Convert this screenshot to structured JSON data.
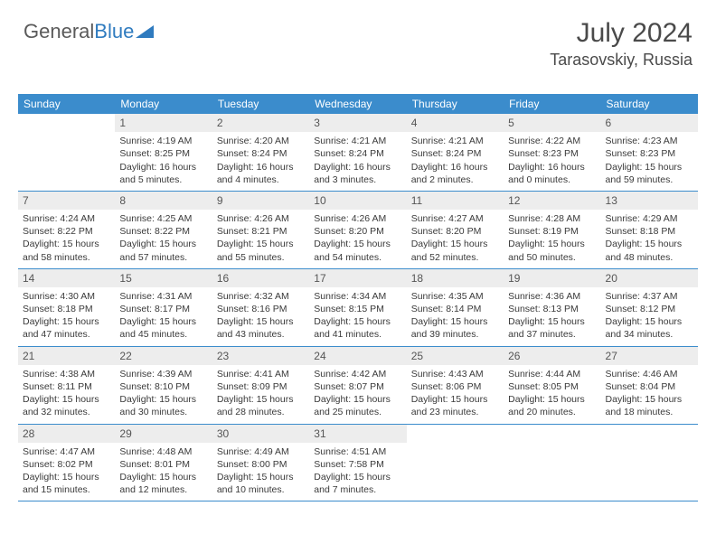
{
  "brand": {
    "part1": "General",
    "part2": "Blue"
  },
  "title": "July 2024",
  "location": "Tarasovskiy, Russia",
  "colors": {
    "header_bg": "#3b8ccc",
    "header_text": "#ffffff",
    "daynum_bg": "#ededed",
    "row_border": "#3b8ccc",
    "text": "#3a3a3a",
    "brand_gray": "#5a5a5a",
    "brand_blue": "#2f7bbf"
  },
  "dow": [
    "Sunday",
    "Monday",
    "Tuesday",
    "Wednesday",
    "Thursday",
    "Friday",
    "Saturday"
  ],
  "weeks": [
    [
      null,
      {
        "n": "1",
        "sr": "4:19 AM",
        "ss": "8:25 PM",
        "dl": "16 hours and 5 minutes."
      },
      {
        "n": "2",
        "sr": "4:20 AM",
        "ss": "8:24 PM",
        "dl": "16 hours and 4 minutes."
      },
      {
        "n": "3",
        "sr": "4:21 AM",
        "ss": "8:24 PM",
        "dl": "16 hours and 3 minutes."
      },
      {
        "n": "4",
        "sr": "4:21 AM",
        "ss": "8:24 PM",
        "dl": "16 hours and 2 minutes."
      },
      {
        "n": "5",
        "sr": "4:22 AM",
        "ss": "8:23 PM",
        "dl": "16 hours and 0 minutes."
      },
      {
        "n": "6",
        "sr": "4:23 AM",
        "ss": "8:23 PM",
        "dl": "15 hours and 59 minutes."
      }
    ],
    [
      {
        "n": "7",
        "sr": "4:24 AM",
        "ss": "8:22 PM",
        "dl": "15 hours and 58 minutes."
      },
      {
        "n": "8",
        "sr": "4:25 AM",
        "ss": "8:22 PM",
        "dl": "15 hours and 57 minutes."
      },
      {
        "n": "9",
        "sr": "4:26 AM",
        "ss": "8:21 PM",
        "dl": "15 hours and 55 minutes."
      },
      {
        "n": "10",
        "sr": "4:26 AM",
        "ss": "8:20 PM",
        "dl": "15 hours and 54 minutes."
      },
      {
        "n": "11",
        "sr": "4:27 AM",
        "ss": "8:20 PM",
        "dl": "15 hours and 52 minutes."
      },
      {
        "n": "12",
        "sr": "4:28 AM",
        "ss": "8:19 PM",
        "dl": "15 hours and 50 minutes."
      },
      {
        "n": "13",
        "sr": "4:29 AM",
        "ss": "8:18 PM",
        "dl": "15 hours and 48 minutes."
      }
    ],
    [
      {
        "n": "14",
        "sr": "4:30 AM",
        "ss": "8:18 PM",
        "dl": "15 hours and 47 minutes."
      },
      {
        "n": "15",
        "sr": "4:31 AM",
        "ss": "8:17 PM",
        "dl": "15 hours and 45 minutes."
      },
      {
        "n": "16",
        "sr": "4:32 AM",
        "ss": "8:16 PM",
        "dl": "15 hours and 43 minutes."
      },
      {
        "n": "17",
        "sr": "4:34 AM",
        "ss": "8:15 PM",
        "dl": "15 hours and 41 minutes."
      },
      {
        "n": "18",
        "sr": "4:35 AM",
        "ss": "8:14 PM",
        "dl": "15 hours and 39 minutes."
      },
      {
        "n": "19",
        "sr": "4:36 AM",
        "ss": "8:13 PM",
        "dl": "15 hours and 37 minutes."
      },
      {
        "n": "20",
        "sr": "4:37 AM",
        "ss": "8:12 PM",
        "dl": "15 hours and 34 minutes."
      }
    ],
    [
      {
        "n": "21",
        "sr": "4:38 AM",
        "ss": "8:11 PM",
        "dl": "15 hours and 32 minutes."
      },
      {
        "n": "22",
        "sr": "4:39 AM",
        "ss": "8:10 PM",
        "dl": "15 hours and 30 minutes."
      },
      {
        "n": "23",
        "sr": "4:41 AM",
        "ss": "8:09 PM",
        "dl": "15 hours and 28 minutes."
      },
      {
        "n": "24",
        "sr": "4:42 AM",
        "ss": "8:07 PM",
        "dl": "15 hours and 25 minutes."
      },
      {
        "n": "25",
        "sr": "4:43 AM",
        "ss": "8:06 PM",
        "dl": "15 hours and 23 minutes."
      },
      {
        "n": "26",
        "sr": "4:44 AM",
        "ss": "8:05 PM",
        "dl": "15 hours and 20 minutes."
      },
      {
        "n": "27",
        "sr": "4:46 AM",
        "ss": "8:04 PM",
        "dl": "15 hours and 18 minutes."
      }
    ],
    [
      {
        "n": "28",
        "sr": "4:47 AM",
        "ss": "8:02 PM",
        "dl": "15 hours and 15 minutes."
      },
      {
        "n": "29",
        "sr": "4:48 AM",
        "ss": "8:01 PM",
        "dl": "15 hours and 12 minutes."
      },
      {
        "n": "30",
        "sr": "4:49 AM",
        "ss": "8:00 PM",
        "dl": "15 hours and 10 minutes."
      },
      {
        "n": "31",
        "sr": "4:51 AM",
        "ss": "7:58 PM",
        "dl": "15 hours and 7 minutes."
      },
      null,
      null,
      null
    ]
  ],
  "labels": {
    "sunrise": "Sunrise:",
    "sunset": "Sunset:",
    "daylight": "Daylight:"
  }
}
